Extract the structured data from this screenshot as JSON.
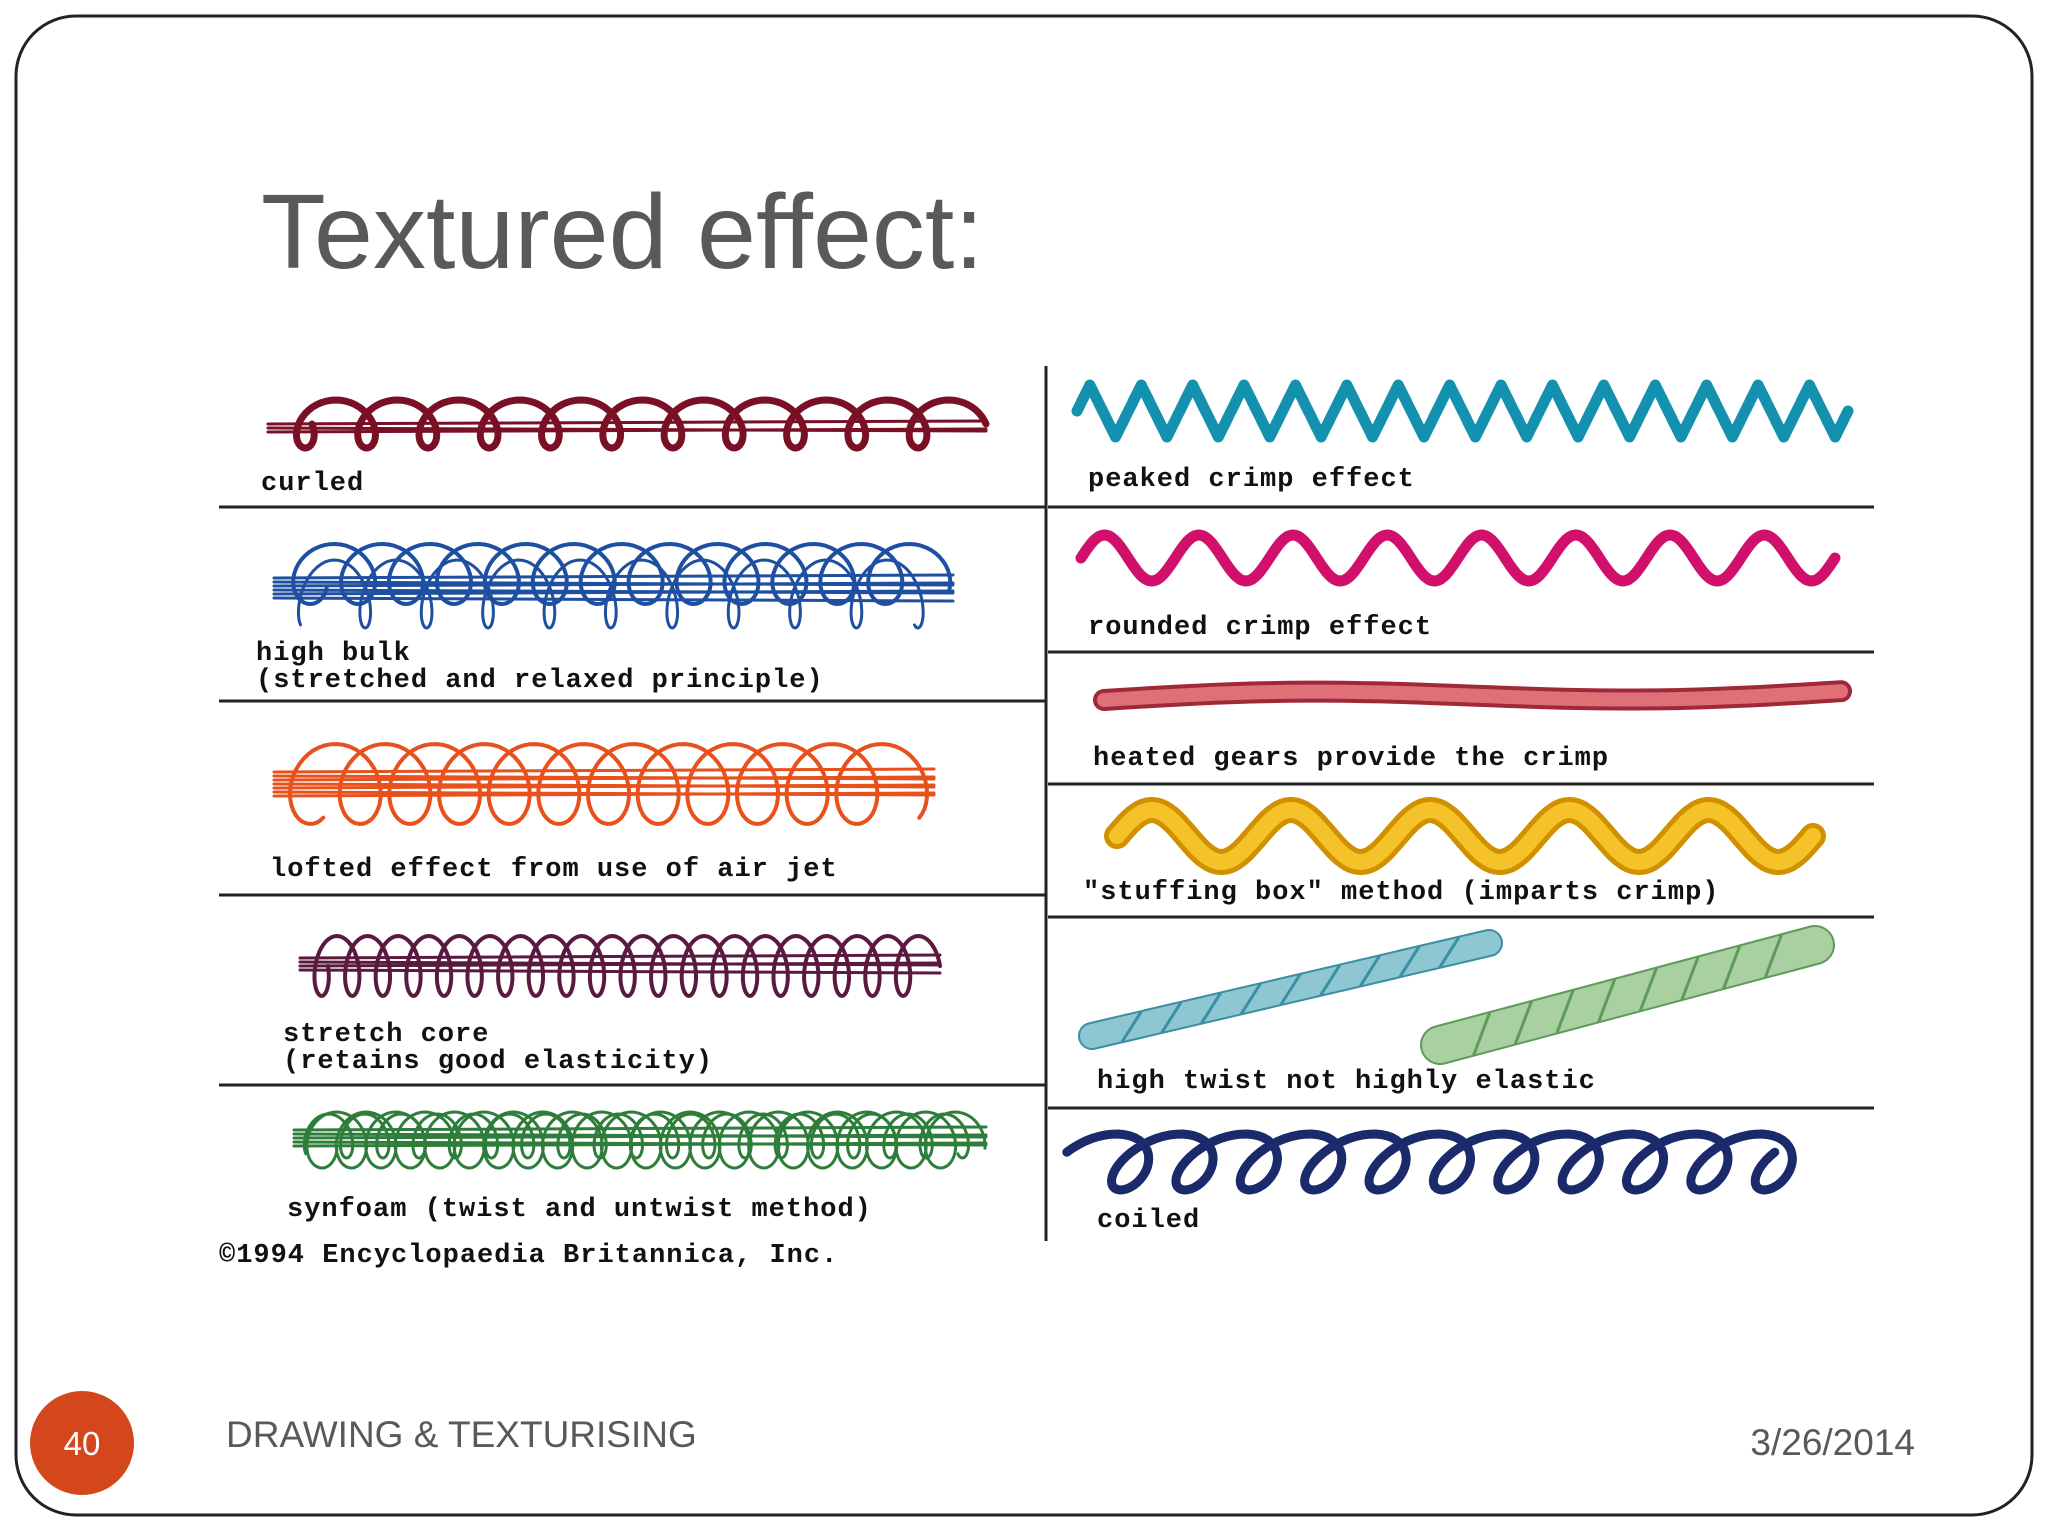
{
  "slide": {
    "title": "Textured effect:",
    "figure": {
      "left": [
        {
          "lines": [
            "curled"
          ]
        },
        {
          "lines": [
            "high bulk",
            "(stretched and relaxed principle)"
          ]
        },
        {
          "lines": [
            "lofted effect from use of air jet"
          ]
        },
        {
          "lines": [
            "stretch core",
            "(retains good elasticity)"
          ]
        },
        {
          "lines": [
            "synfoam (twist and untwist method)"
          ]
        }
      ],
      "right": [
        {
          "lines": [
            "peaked crimp effect"
          ]
        },
        {
          "lines": [
            "rounded crimp effect"
          ]
        },
        {
          "lines": [
            "heated gears provide the crimp"
          ]
        },
        {
          "lines": [
            "\"stuffing box\" method (imparts crimp)"
          ]
        },
        {
          "lines": [
            "high twist not highly elastic"
          ]
        },
        {
          "lines": [
            "coiled"
          ]
        }
      ],
      "credit": "©1994 Encyclopaedia Britannica, Inc."
    },
    "footer": {
      "page_number": "40",
      "text": "DRAWING & TEXTURISING",
      "date": "3/26/2014"
    }
  }
}
